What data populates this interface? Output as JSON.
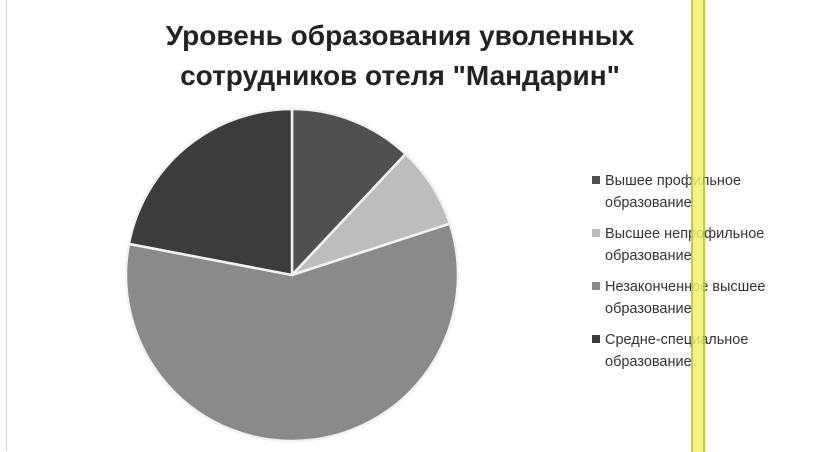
{
  "chart_data": {
    "type": "pie",
    "title": "Уровень образования уволенных\nсотрудников отеля \"Мандарин\"",
    "legend_position": "right",
    "categories": [
      "Вышее профильное образование",
      "Высшее непрофильное образование",
      "Незаконченное высшее образование",
      "Средне-специальное образование"
    ],
    "values": [
      12,
      8,
      58,
      22
    ],
    "colors": [
      "#505050",
      "#bdbdbd",
      "#8a8a8a",
      "#3c3c3c"
    ]
  }
}
